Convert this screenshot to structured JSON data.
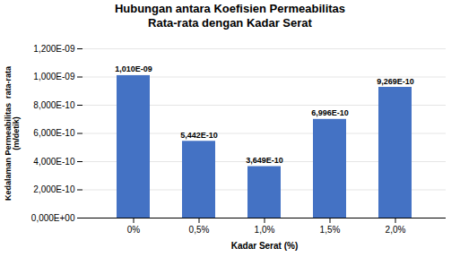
{
  "chart_data": {
    "type": "bar",
    "title": "Hubungan antara Koefisien Permeabilitas\nRata-rata dengan Kadar Serat",
    "xlabel": "Kadar Serat (%)",
    "ylabel": "Kedalaman Permeabilitas  rata-rata\n(m/detik)",
    "categories": [
      "0%",
      "0,5%",
      "1,0%",
      "1,5%",
      "2,0%"
    ],
    "values": [
      1.01e-09,
      5.442e-10,
      3.649e-10,
      6.996e-10,
      9.269e-10
    ],
    "value_labels": [
      "1,010E-09",
      "5,442E-10",
      "3,649E-10",
      "6,996E-10",
      "9,269E-10"
    ],
    "data_labels": true,
    "color": "#4472C4",
    "ylim": [
      0,
      1.2e-09
    ],
    "yticks": [
      {
        "value": 0,
        "label": "0,000E+00"
      },
      {
        "value": 2e-10,
        "label": "2,000E-10"
      },
      {
        "value": 4e-10,
        "label": "4,000E-10"
      },
      {
        "value": 6e-10,
        "label": "6,000E-10"
      },
      {
        "value": 8e-10,
        "label": "8,000E-10"
      },
      {
        "value": 1e-09,
        "label": "1,000E-09"
      },
      {
        "value": 1.2e-09,
        "label": "1,200E-09"
      }
    ],
    "grid": true
  }
}
